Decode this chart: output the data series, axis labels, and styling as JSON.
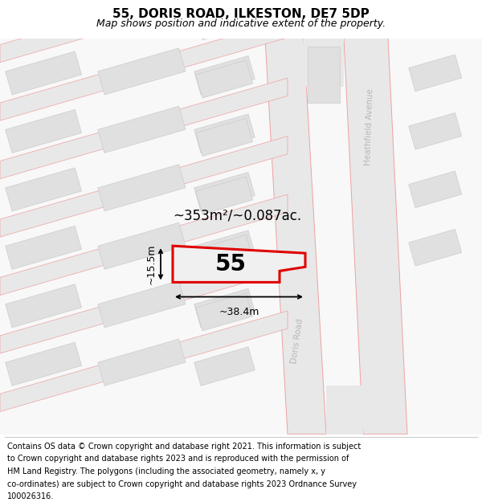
{
  "title": "55, DORIS ROAD, ILKESTON, DE7 5DP",
  "subtitle": "Map shows position and indicative extent of the property.",
  "footer_lines": [
    "Contains OS data © Crown copyright and database right 2021. This information is subject",
    "to Crown copyright and database rights 2023 and is reproduced with the permission of",
    "HM Land Registry. The polygons (including the associated geometry, namely x, y",
    "co-ordinates) are subject to Crown copyright and database rights 2023 Ordnance Survey",
    "100026316."
  ],
  "area_label": "~353m²/~0.087ac.",
  "number_label": "55",
  "width_label": "~38.4m",
  "height_label": "~15.5m",
  "title_fontsize": 11,
  "subtitle_fontsize": 9,
  "footer_fontsize": 7.0,
  "area_fontsize": 12,
  "number_fontsize": 20,
  "dim_fontsize": 9,
  "road_label_fontsize": 7.5,
  "map_bg": "#f8f8f8",
  "road_fill": "#e8e8e8",
  "road_line_color": "#f0a0a0",
  "bldg_fill": "#e0e0e0",
  "bldg_edge": "#cccccc",
  "prop_fill": "#f0f0f0",
  "prop_edge": "#e00000",
  "prop_edge_width": 2.2,
  "road_label_color": "#b8b8b8"
}
